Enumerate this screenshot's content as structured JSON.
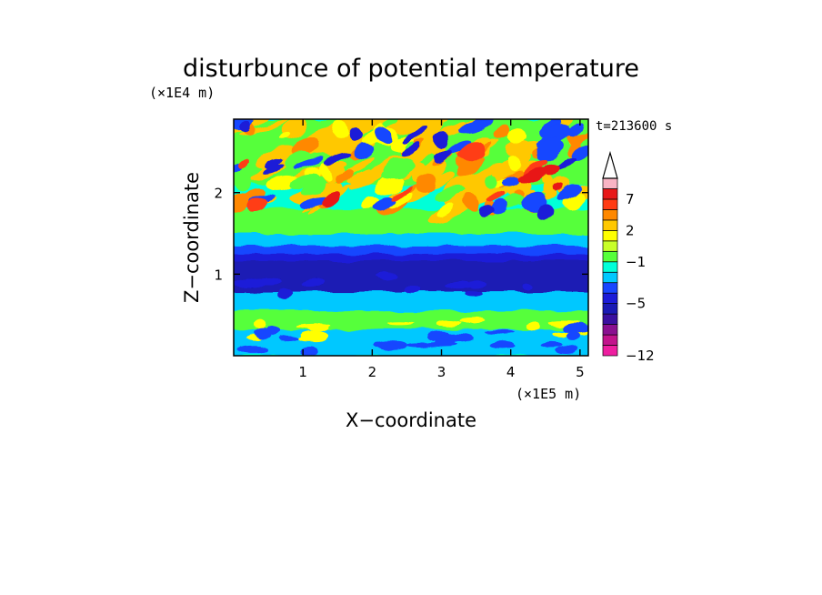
{
  "chart_data": {
    "type": "heatmap",
    "title": "disturbunce of potential temperature",
    "xlabel": "X−coordinate",
    "ylabel": "Z−coordinate",
    "x_unit": "(×1E5 m)",
    "y_unit": "(×1E4 m)",
    "time_label": "t=213600 s",
    "xlim": [
      0,
      5.12
    ],
    "ylim": [
      0,
      2.9
    ],
    "x_ticks": [
      {
        "value": 1,
        "label": "1"
      },
      {
        "value": 2,
        "label": "2"
      },
      {
        "value": 3,
        "label": "3"
      },
      {
        "value": 4,
        "label": "4"
      },
      {
        "value": 5,
        "label": "5"
      }
    ],
    "y_ticks": [
      {
        "value": 1,
        "label": "1"
      },
      {
        "value": 2,
        "label": "2"
      }
    ],
    "colorbar": {
      "levels": [
        -12,
        -10,
        -8,
        -7,
        -6,
        -5,
        -4,
        -3,
        -2,
        -1,
        0,
        1,
        2,
        3,
        5,
        7,
        9,
        11
      ],
      "colors": [
        "#ee1ea0",
        "#c2138c",
        "#8a1090",
        "#3a10a0",
        "#1a1ab4",
        "#1c1cd8",
        "#1846ff",
        "#00c8ff",
        "#00ffd8",
        "#56ff3a",
        "#c8ff28",
        "#ffff00",
        "#ffc800",
        "#ff8800",
        "#ff3c14",
        "#e81818",
        "#f8b4c4"
      ],
      "tick_labels": [
        {
          "value": -12,
          "label": "−12"
        },
        {
          "value": -5,
          "label": "−5"
        },
        {
          "value": -1,
          "label": "−1"
        },
        {
          "value": 2,
          "label": "2"
        },
        {
          "value": 7,
          "label": "7"
        }
      ],
      "extend": "max"
    }
  }
}
